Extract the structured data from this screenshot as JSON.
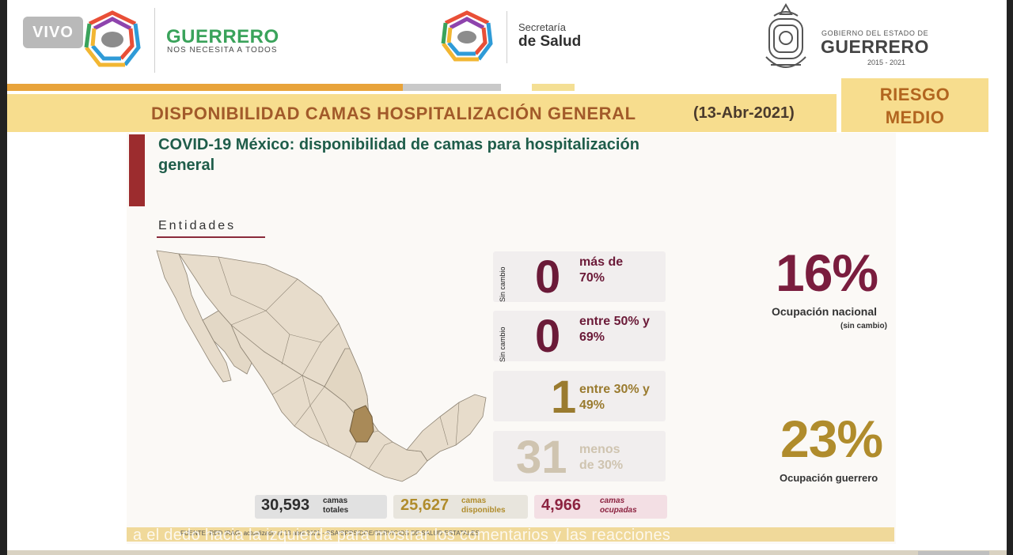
{
  "live_badge": "VIVO",
  "header": {
    "guerrero_title": "GUERRERO",
    "guerrero_subtitle": "NOS NECESITA A TODOS",
    "salud_line1": "Secretaría",
    "salud_line2": "de Salud",
    "gobierno_line1": "GOBIERNO DEL ESTADO DE",
    "gobierno_line2": "GUERRERO",
    "gobierno_years": "2015 - 2021"
  },
  "title_band": {
    "title": "DISPONIBILIDAD CAMAS HOSPITALIZACIÓN GENERAL",
    "date": "(13-Abr-2021)"
  },
  "risk": {
    "line1": "RIESGO",
    "line2": "MEDIO"
  },
  "card": {
    "title": "COVID-19 México: disponibilidad de camas para hospitalización general",
    "entities_label": "Entidades"
  },
  "rows": [
    {
      "status": "Sin cambio",
      "count": "0",
      "label": "más de 70%",
      "color": "#6b1a38"
    },
    {
      "status": "Sin cambio",
      "count": "0",
      "label": "entre 50% y 69%",
      "color": "#6b1a38"
    },
    {
      "status": "",
      "count": "1",
      "label": "entre 30% y 49%",
      "color": "#9a7b2f"
    },
    {
      "status": "",
      "count": "31",
      "label": "menos de 30%",
      "color": "#cfc4b0"
    }
  ],
  "totals": {
    "total_value": "30,593",
    "total_label": "camas totales",
    "available_value": "25,627",
    "available_label": "camas disponibles",
    "occupied_value": "4,966",
    "occupied_label": "camas ocupadas"
  },
  "national": {
    "pct": "16%",
    "label": "Ocupación nacional",
    "note": "(sin cambio)"
  },
  "guerrero": {
    "pct": "23%",
    "label": "Ocupación guerrero"
  },
  "footer_note": "FUENTE: RED IRAG, actualizado al 13 abril 2021 - SSA/SPPS/DGE/SERVICIOS DE SALUD ESTATALES",
  "overlay_hint": "a el dedo hacia la izquierda para mostrar los comentarios y las reacciones",
  "colors": {
    "brand_green": "#3aa35b",
    "title_orange": "#a25a2a",
    "risk_yellow": "#f7dd8e",
    "accent_red": "#9c2c2e",
    "card_green": "#1f5d4a",
    "maroon": "#6b1a38",
    "gold": "#b08c2c"
  }
}
